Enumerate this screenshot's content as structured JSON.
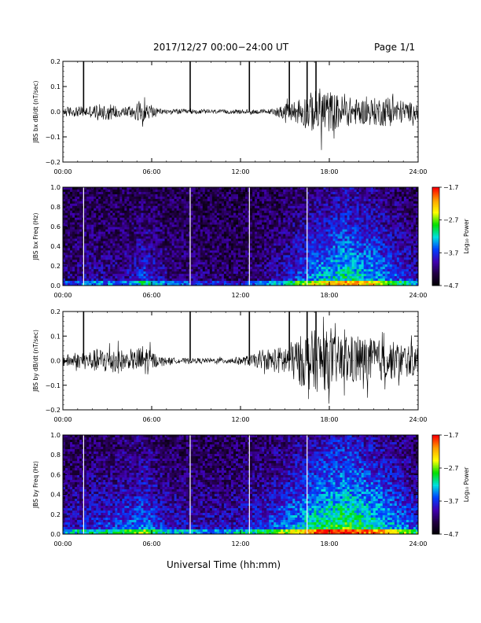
{
  "header": {
    "title": "2017/12/27  00:00−24:00 UT",
    "page": "Page 1/1"
  },
  "x_axis_label": "Universal Time (hh:mm)",
  "colorbar": {
    "label": "Log₁₀ Power",
    "tick_labels": [
      "−1.7",
      "−2.7",
      "−3.7",
      "−4.7"
    ],
    "colors": [
      "#ff0000",
      "#ffa000",
      "#ffff00",
      "#00e000",
      "#00e0e0",
      "#0040ff",
      "#4000b0",
      "#200040",
      "#000000"
    ]
  },
  "chart_data": [
    {
      "type": "line",
      "ylabel": "JBS bx dB/dt (nT/sec)",
      "x_ticks": [
        "00:00",
        "06:00",
        "12:00",
        "18:00",
        "24:00"
      ],
      "y_ticks": [
        "0.2",
        "0.1",
        "0.0",
        "−0.1",
        "−0.2"
      ],
      "xlim": [
        0,
        24
      ],
      "ylim": [
        -0.2,
        0.2
      ],
      "line_color": "#000000",
      "spikes_hours": [
        1.4,
        8.6,
        12.6,
        15.3,
        16.5,
        17.1
      ],
      "noise_profile": [
        {
          "x": 0,
          "y": 0.02
        },
        {
          "x": 1,
          "y": 0.02
        },
        {
          "x": 2,
          "y": 0.025
        },
        {
          "x": 3,
          "y": 0.035
        },
        {
          "x": 4,
          "y": 0.02
        },
        {
          "x": 5.5,
          "y": 0.04
        },
        {
          "x": 6.5,
          "y": 0.01
        },
        {
          "x": 8,
          "y": 0.01
        },
        {
          "x": 10,
          "y": 0.008
        },
        {
          "x": 12,
          "y": 0.008
        },
        {
          "x": 14,
          "y": 0.01
        },
        {
          "x": 15.5,
          "y": 0.04
        },
        {
          "x": 16.5,
          "y": 0.07
        },
        {
          "x": 17.5,
          "y": 0.1
        },
        {
          "x": 18.5,
          "y": 0.07
        },
        {
          "x": 20,
          "y": 0.05
        },
        {
          "x": 22,
          "y": 0.06
        },
        {
          "x": 24,
          "y": 0.03
        }
      ]
    },
    {
      "type": "heatmap",
      "ylabel": "JBS bx Freq (Hz)",
      "x_ticks": [
        "00:00",
        "06:00",
        "12:00",
        "18:00",
        "24:00"
      ],
      "y_ticks": [
        "1.0",
        "0.8",
        "0.6",
        "0.4",
        "0.2",
        "0.0"
      ],
      "xlim": [
        0,
        24
      ],
      "ylim": [
        0,
        1
      ],
      "gap_lines_hours": [
        1.4,
        8.6,
        12.6,
        16.5
      ],
      "activity_profile": [
        {
          "x": 0,
          "a": 0.15
        },
        {
          "x": 2,
          "a": 0.25
        },
        {
          "x": 4,
          "a": 0.2
        },
        {
          "x": 5.5,
          "a": 0.45
        },
        {
          "x": 7,
          "a": 0.2
        },
        {
          "x": 9,
          "a": 0.15
        },
        {
          "x": 11,
          "a": 0.1
        },
        {
          "x": 13,
          "a": 0.15
        },
        {
          "x": 15,
          "a": 0.35
        },
        {
          "x": 17,
          "a": 0.65
        },
        {
          "x": 19,
          "a": 0.85
        },
        {
          "x": 21,
          "a": 0.7
        },
        {
          "x": 23,
          "a": 0.45
        },
        {
          "x": 24,
          "a": 0.3
        }
      ]
    },
    {
      "type": "line",
      "ylabel": "JBS by dB/dt (nT/sec)",
      "x_ticks": [
        "00:00",
        "06:00",
        "12:00",
        "18:00",
        "24:00"
      ],
      "y_ticks": [
        "0.2",
        "0.1",
        "0.0",
        "−0.1",
        "−0.2"
      ],
      "xlim": [
        0,
        24
      ],
      "ylim": [
        -0.2,
        0.2
      ],
      "line_color": "#000000",
      "spikes_hours": [
        1.4,
        8.6,
        12.6,
        15.3,
        16.5,
        17.1
      ],
      "noise_profile": [
        {
          "x": 0,
          "y": 0.025
        },
        {
          "x": 1,
          "y": 0.03
        },
        {
          "x": 2.5,
          "y": 0.05
        },
        {
          "x": 3.5,
          "y": 0.06
        },
        {
          "x": 4.5,
          "y": 0.03
        },
        {
          "x": 5.5,
          "y": 0.07
        },
        {
          "x": 6.5,
          "y": 0.015
        },
        {
          "x": 8,
          "y": 0.01
        },
        {
          "x": 10,
          "y": 0.01
        },
        {
          "x": 12,
          "y": 0.015
        },
        {
          "x": 14,
          "y": 0.04
        },
        {
          "x": 15.5,
          "y": 0.08
        },
        {
          "x": 16.5,
          "y": 0.12
        },
        {
          "x": 17.5,
          "y": 0.13
        },
        {
          "x": 18.5,
          "y": 0.1
        },
        {
          "x": 20,
          "y": 0.1
        },
        {
          "x": 22,
          "y": 0.08
        },
        {
          "x": 24,
          "y": 0.06
        }
      ]
    },
    {
      "type": "heatmap",
      "ylabel": "JBS by Freq (Hz)",
      "x_ticks": [
        "00:00",
        "06:00",
        "12:00",
        "18:00",
        "24:00"
      ],
      "y_ticks": [
        "1.0",
        "0.8",
        "0.6",
        "0.4",
        "0.2",
        "0.0"
      ],
      "xlim": [
        0,
        24
      ],
      "ylim": [
        0,
        1
      ],
      "gap_lines_hours": [
        1.4,
        8.6,
        12.6,
        16.5
      ],
      "activity_profile": [
        {
          "x": 0,
          "a": 0.3
        },
        {
          "x": 2,
          "a": 0.4
        },
        {
          "x": 3.5,
          "a": 0.45
        },
        {
          "x": 5.5,
          "a": 0.6
        },
        {
          "x": 7,
          "a": 0.35
        },
        {
          "x": 9,
          "a": 0.3
        },
        {
          "x": 11,
          "a": 0.3
        },
        {
          "x": 13,
          "a": 0.4
        },
        {
          "x": 15,
          "a": 0.6
        },
        {
          "x": 17,
          "a": 0.85
        },
        {
          "x": 19,
          "a": 1.0
        },
        {
          "x": 21,
          "a": 0.85
        },
        {
          "x": 23,
          "a": 0.6
        },
        {
          "x": 24,
          "a": 0.45
        }
      ]
    }
  ]
}
